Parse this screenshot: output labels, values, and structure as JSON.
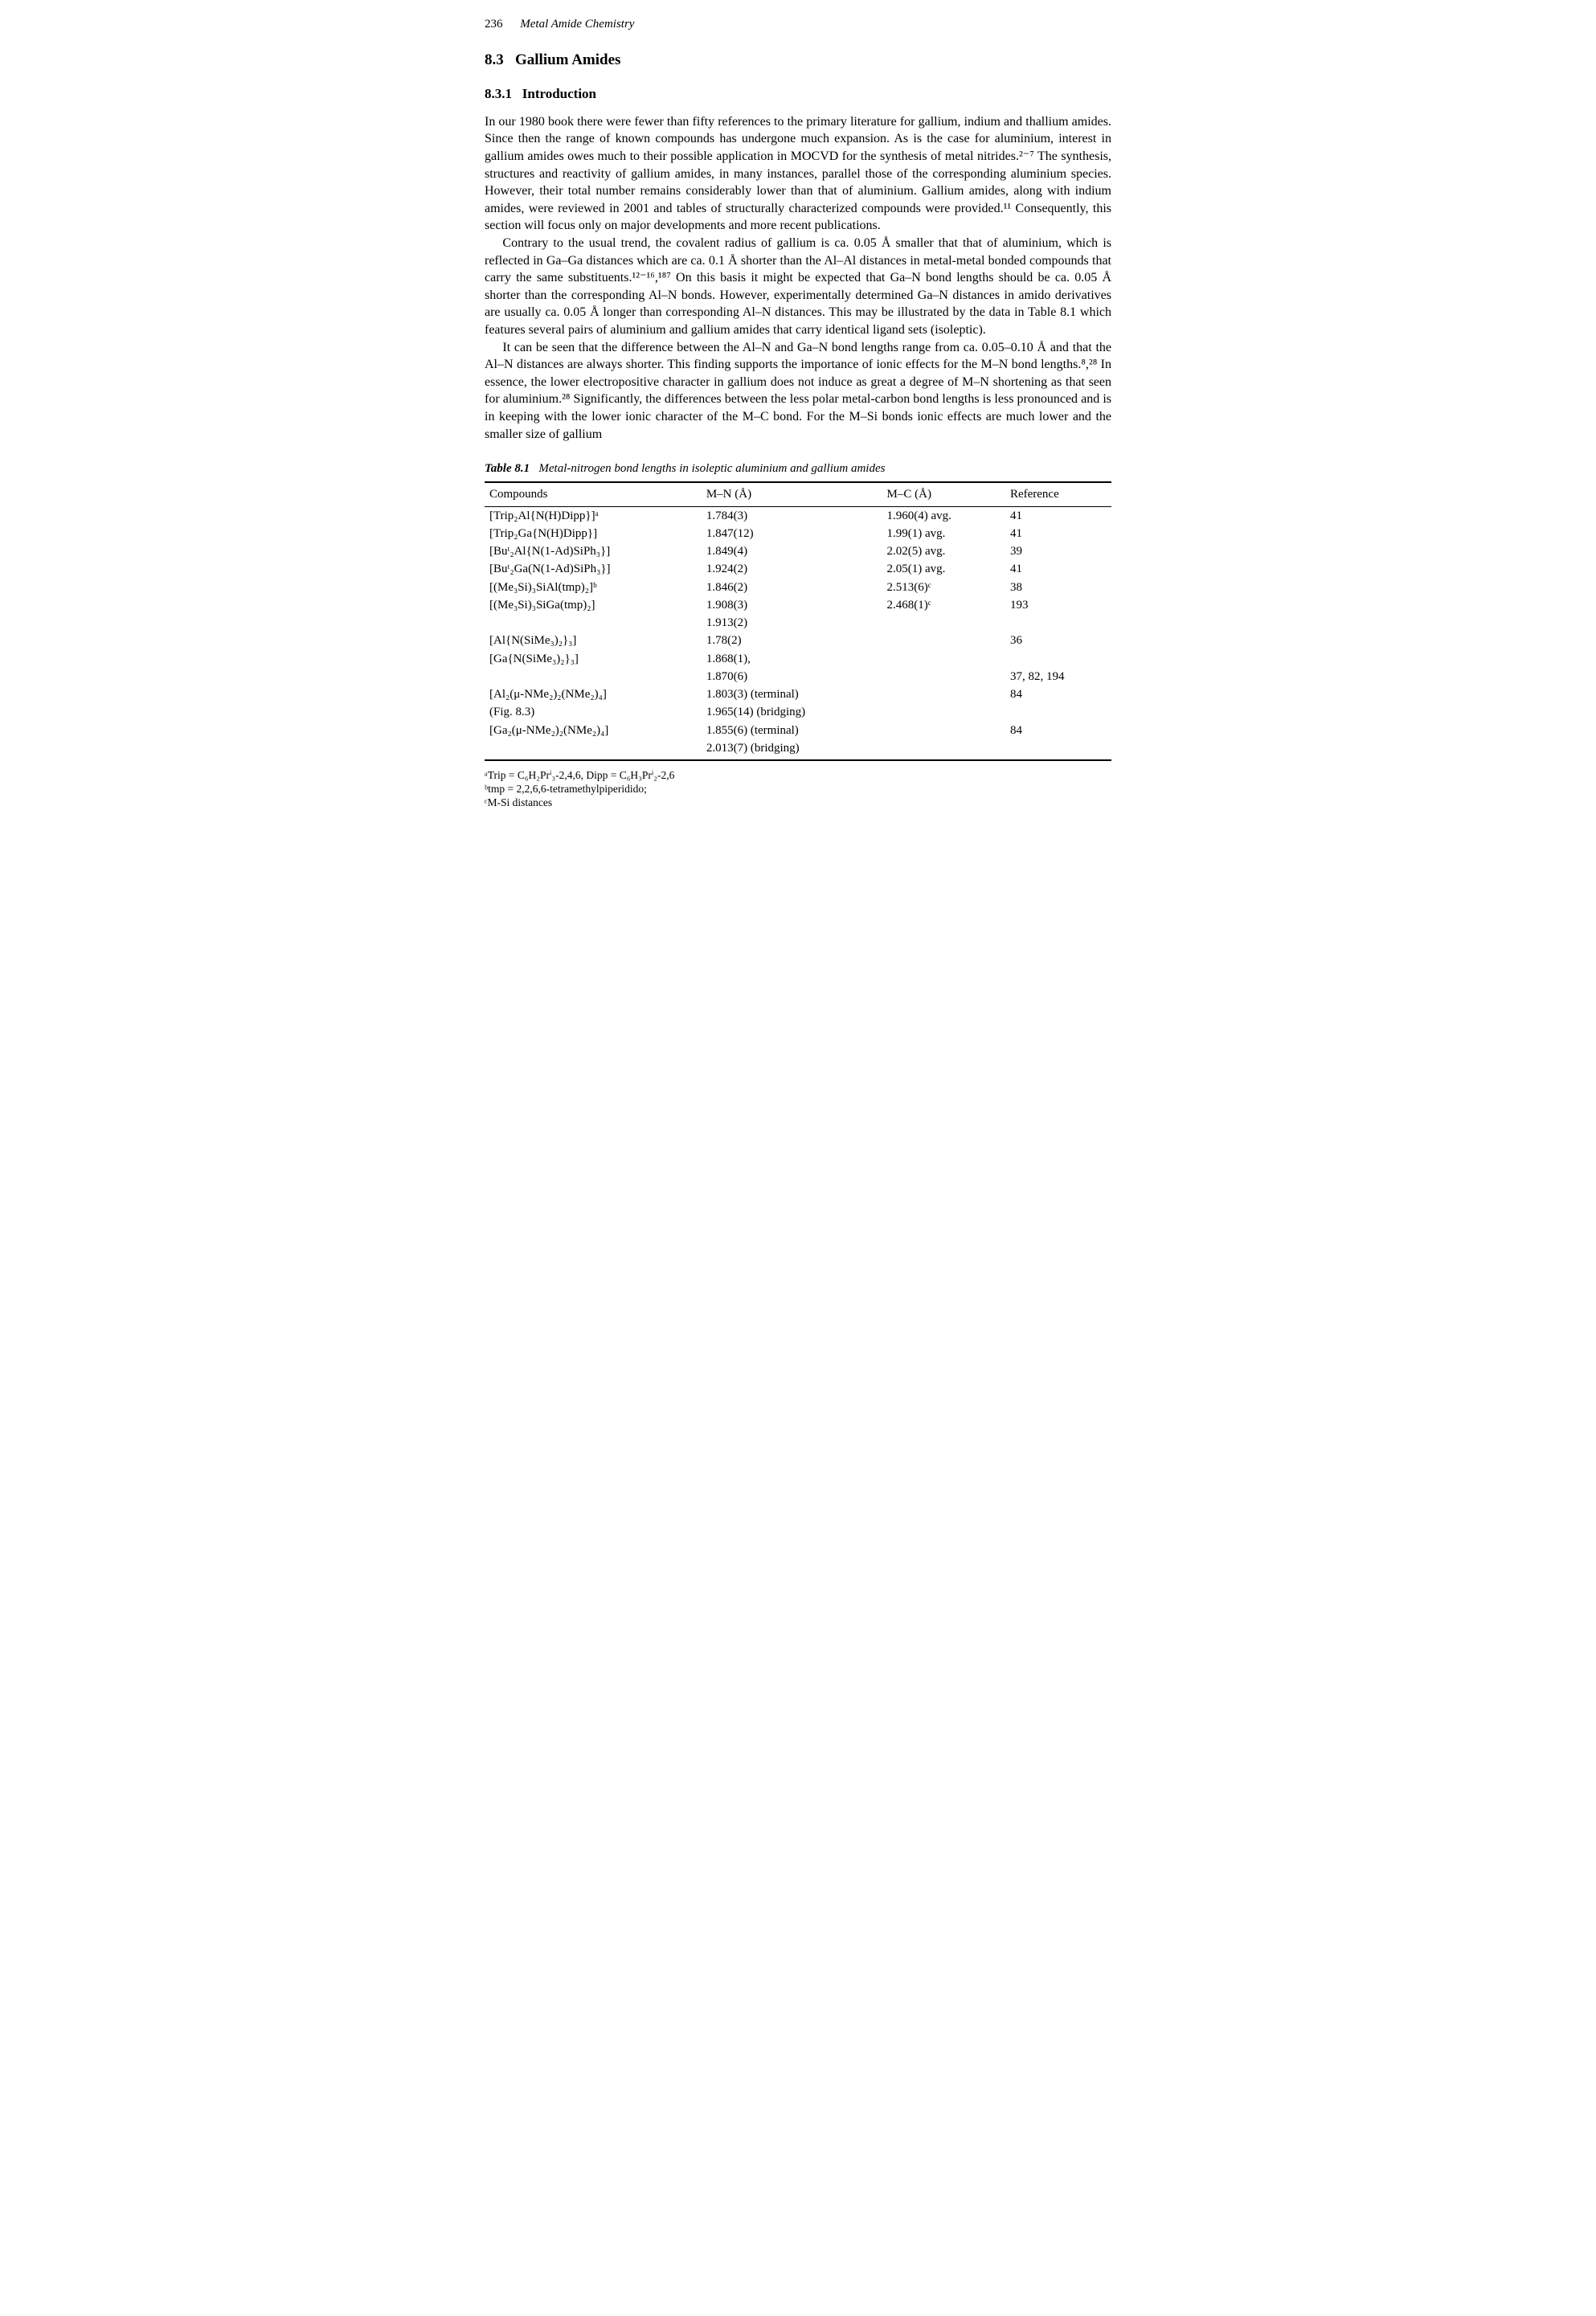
{
  "running_head": {
    "page": "236",
    "title": "Metal Amide Chemistry"
  },
  "section": {
    "number": "8.3",
    "title": "Gallium Amides"
  },
  "subsection": {
    "number": "8.3.1",
    "title": "Introduction"
  },
  "paragraphs": {
    "p1": "In our 1980 book there were fewer than fifty references to the primary literature for gallium, indium and thallium amides. Since then the range of known compounds has undergone much expansion. As is the case for aluminium, interest in gallium amides owes much to their possible application in MOCVD for the synthesis of metal nitrides.²⁻⁷ The synthesis, structures and reactivity of gallium amides, in many instances, parallel those of the corresponding aluminium species. However, their total number remains considerably lower than that of aluminium. Gallium amides, along with indium amides, were reviewed in 2001 and tables of structurally characterized compounds were provided.¹¹ Consequently, this section will focus only on major developments and more recent publications.",
    "p2": "Contrary to the usual trend, the covalent radius of gallium is ca. 0.05 Å smaller that that of aluminium, which is reflected in Ga–Ga distances which are ca. 0.1 Å shorter than the Al–Al distances in metal-metal bonded compounds that carry the same substituents.¹²⁻¹⁶,¹⁸⁷ On this basis it might be expected that Ga–N bond lengths should be ca. 0.05 Å shorter than the corresponding Al–N bonds. However, experimentally determined Ga–N distances in amido derivatives are usually ca. 0.05 Å longer than corresponding Al–N distances. This may be illustrated by the data in Table 8.1 which features several pairs of aluminium and gallium amides that carry identical ligand sets (isoleptic).",
    "p3": "It can be seen that the difference between the Al–N and Ga–N bond lengths range from ca. 0.05–0.10 Å and that the Al–N distances are always shorter. This finding supports the importance of ionic effects for the M–N bond lengths.⁸,²⁸ In essence, the lower electropositive character in gallium does not induce as great a degree of M–N shortening as that seen for aluminium.²⁸ Significantly, the differences between the less polar metal-carbon bond lengths is less pronounced and is in keeping with the lower ionic character of the M–C bond. For the M–Si bonds ionic effects are much lower and the smaller size of gallium"
  },
  "table": {
    "label": "Table 8.1",
    "caption": "Metal-nitrogen bond lengths in isoleptic aluminium and gallium amides",
    "columns": [
      "Compounds",
      "M–N (Å)",
      "M–C (Å)",
      "Reference"
    ],
    "rows": [
      {
        "c0": "[Trip₂Al{N(H)Dipp}]ᵃ",
        "c1": "1.784(3)",
        "c2": "1.960(4) avg.",
        "c3": "41"
      },
      {
        "c0": "[Trip₂Ga{N(H)Dipp}]",
        "c1": "1.847(12)",
        "c2": "1.99(1) avg.",
        "c3": "41"
      },
      {
        "c0": "[Buᵗ₂Al{N(1-Ad)SiPh₃}]",
        "c1": "1.849(4)",
        "c2": "2.02(5) avg.",
        "c3": "39"
      },
      {
        "c0": "[Buᵗ₂Ga(N(1-Ad)SiPh₃}]",
        "c1": "1.924(2)",
        "c2": "2.05(1) avg.",
        "c3": "41"
      },
      {
        "c0": "[(Me₃Si)₃SiAl(tmp)₂]ᵇ",
        "c1": "1.846(2)",
        "c2": "2.513(6)ᶜ",
        "c3": "38"
      },
      {
        "c0": "[(Me₃Si)₃SiGa(tmp)₂]",
        "c1": "1.908(3)",
        "c2": "2.468(1)ᶜ",
        "c3": "193"
      },
      {
        "c0": "",
        "c1": "1.913(2)",
        "c2": "",
        "c3": ""
      },
      {
        "c0": "[Al{N(SiMe₃)₂}₃]",
        "c1": "1.78(2)",
        "c2": "",
        "c3": "36"
      },
      {
        "c0": "[Ga{N(SiMe₃)₂}₃]",
        "c1": "1.868(1),",
        "c2": "",
        "c3": ""
      },
      {
        "c0": "",
        "c1": "1.870(6)",
        "c2": "",
        "c3": "37, 82, 194"
      },
      {
        "c0": "[Al₂(μ-NMe₂)₂(NMe₂)₄]",
        "c1": "1.803(3) (terminal)",
        "c2": "",
        "c3": "84"
      },
      {
        "c0": "(Fig. 8.3)",
        "c1": "1.965(14) (bridging)",
        "c2": "",
        "c3": ""
      },
      {
        "c0": "[Ga₂(μ-NMe₂)₂(NMe₂)₄]",
        "c1": "1.855(6) (terminal)",
        "c2": "",
        "c3": "84"
      },
      {
        "c0": "",
        "c1": "2.013(7) (bridging)",
        "c2": "",
        "c3": ""
      }
    ]
  },
  "footnotes": {
    "a": "ᵃTrip = C₆H₂Prⁱ₃-2,4,6, Dipp = C₆H₃Prⁱ₂-2,6",
    "b": "ᵇtmp = 2,2,6,6-tetramethylpiperidido;",
    "c": "ᶜM-Si distances"
  }
}
